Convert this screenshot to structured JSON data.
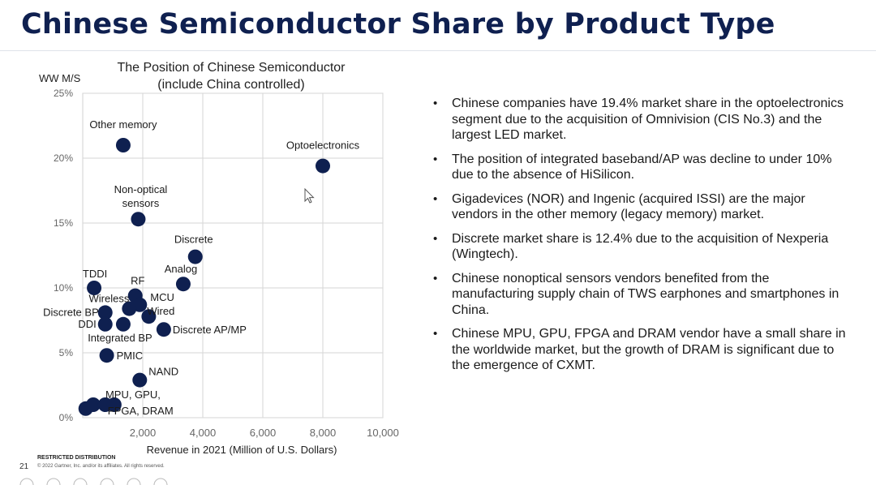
{
  "slide": {
    "title": "Chinese Semiconductor Share by Product Type",
    "footer": {
      "restricted": "RESTRICTED DISTRIBUTION",
      "page_number": "21",
      "copyright": "© 2022 Gartner, Inc. and/or its affiliates. All rights reserved."
    }
  },
  "bullets": [
    "Chinese companies have 19.4% market share in the optoelectronics segment due to the acquisition of Omnivision (CIS No.3) and the largest LED market.",
    "The position of integrated baseband/AP was decline to under 10% due to the absence of HiSilicon.",
    "Gigadevices (NOR) and Ingenic (acquired ISSI) are the major vendors in the other memory (legacy memory) market.",
    "Discrete market share is 12.4% due to the acquisition of Nexperia (Wingtech).",
    "Chinese nonoptical sensors vendors benefited from the manufacturing supply chain of TWS earphones and smartphones in China.",
    "Chinese MPU, GPU, FPGA and DRAM vendor have a small share in the worldwide market, but the growth of DRAM is significant due to the emergence of CXMT."
  ],
  "chart_data": {
    "type": "scatter",
    "title_lines": [
      "The Position of Chinese Semiconductor",
      "(include China controlled)"
    ],
    "xlabel": "Revenue in 2021 (Million of U.S. Dollars)",
    "ylabel": "WW M/S",
    "xlim": [
      0,
      10000
    ],
    "ylim": [
      0,
      25
    ],
    "x_ticks": [
      2000,
      4000,
      6000,
      8000,
      10000
    ],
    "x_tick_labels": [
      "2,000",
      "4,000",
      "6,000",
      "8,000",
      "10,000"
    ],
    "y_ticks": [
      0,
      5,
      10,
      15,
      20,
      25
    ],
    "y_tick_labels": [
      "0%",
      "5%",
      "10%",
      "15%",
      "20%",
      "25%"
    ],
    "grid": true,
    "point_color": "#0f2050",
    "points": [
      {
        "label": "Optoelectronics",
        "x": 8000,
        "y": 19.4
      },
      {
        "label": "Other memory",
        "x": 1350,
        "y": 21.0
      },
      {
        "label": "Non-optical sensors",
        "x": 1850,
        "y": 15.3
      },
      {
        "label": "Discrete",
        "x": 3750,
        "y": 12.4
      },
      {
        "label": "Analog",
        "x": 3350,
        "y": 10.3
      },
      {
        "label": "TDDI",
        "x": 380,
        "y": 10.0
      },
      {
        "label": "RF",
        "x": 1750,
        "y": 9.4
      },
      {
        "label": "MCU",
        "x": 1900,
        "y": 8.7
      },
      {
        "label": "Wireless",
        "x": 1550,
        "y": 8.4
      },
      {
        "label": "Wired",
        "x": 2200,
        "y": 7.8
      },
      {
        "label": "Discrete BP",
        "x": 750,
        "y": 8.1
      },
      {
        "label": "DDI",
        "x": 750,
        "y": 7.2
      },
      {
        "label": "Integrated BP",
        "x": 1350,
        "y": 7.2
      },
      {
        "label": "Discrete AP/MP",
        "x": 2700,
        "y": 6.8
      },
      {
        "label": "PMIC",
        "x": 800,
        "y": 4.8
      },
      {
        "label": "NAND",
        "x": 1900,
        "y": 2.9
      },
      {
        "label": "MPU",
        "x": 100,
        "y": 0.7
      },
      {
        "label": "GPU",
        "x": 350,
        "y": 1.0
      },
      {
        "label": "FPGA",
        "x": 750,
        "y": 1.0
      },
      {
        "label": "DRAM",
        "x": 1050,
        "y": 1.0
      }
    ],
    "annotations": [
      {
        "text": "Other memory",
        "anchor": "Other memory"
      },
      {
        "text": "Optoelectronics",
        "anchor": "Optoelectronics"
      },
      {
        "text": "Non-optical",
        "anchor": "Non-optical sensors"
      },
      {
        "text": "sensors",
        "anchor": "Non-optical sensors"
      },
      {
        "text": "Discrete",
        "anchor": "Discrete"
      },
      {
        "text": "Analog",
        "anchor": "Analog"
      },
      {
        "text": "TDDI",
        "anchor": "TDDI"
      },
      {
        "text": "RF",
        "anchor": "RF"
      },
      {
        "text": "MCU",
        "anchor": "MCU"
      },
      {
        "text": "Wireless",
        "anchor": "Wireless"
      },
      {
        "text": "Wired",
        "anchor": "Wired"
      },
      {
        "text": "Discrete BP",
        "anchor": "Discrete BP"
      },
      {
        "text": "DDI",
        "anchor": "DDI"
      },
      {
        "text": "Integrated BP",
        "anchor": "Integrated BP"
      },
      {
        "text": "Discrete AP/MP",
        "anchor": "Discrete AP/MP"
      },
      {
        "text": "PMIC",
        "anchor": "PMIC"
      },
      {
        "text": "NAND",
        "anchor": "NAND"
      },
      {
        "text": "MPU, GPU,",
        "anchor": "GPU"
      },
      {
        "text": "FPGA, DRAM",
        "anchor": "FPGA"
      }
    ]
  }
}
